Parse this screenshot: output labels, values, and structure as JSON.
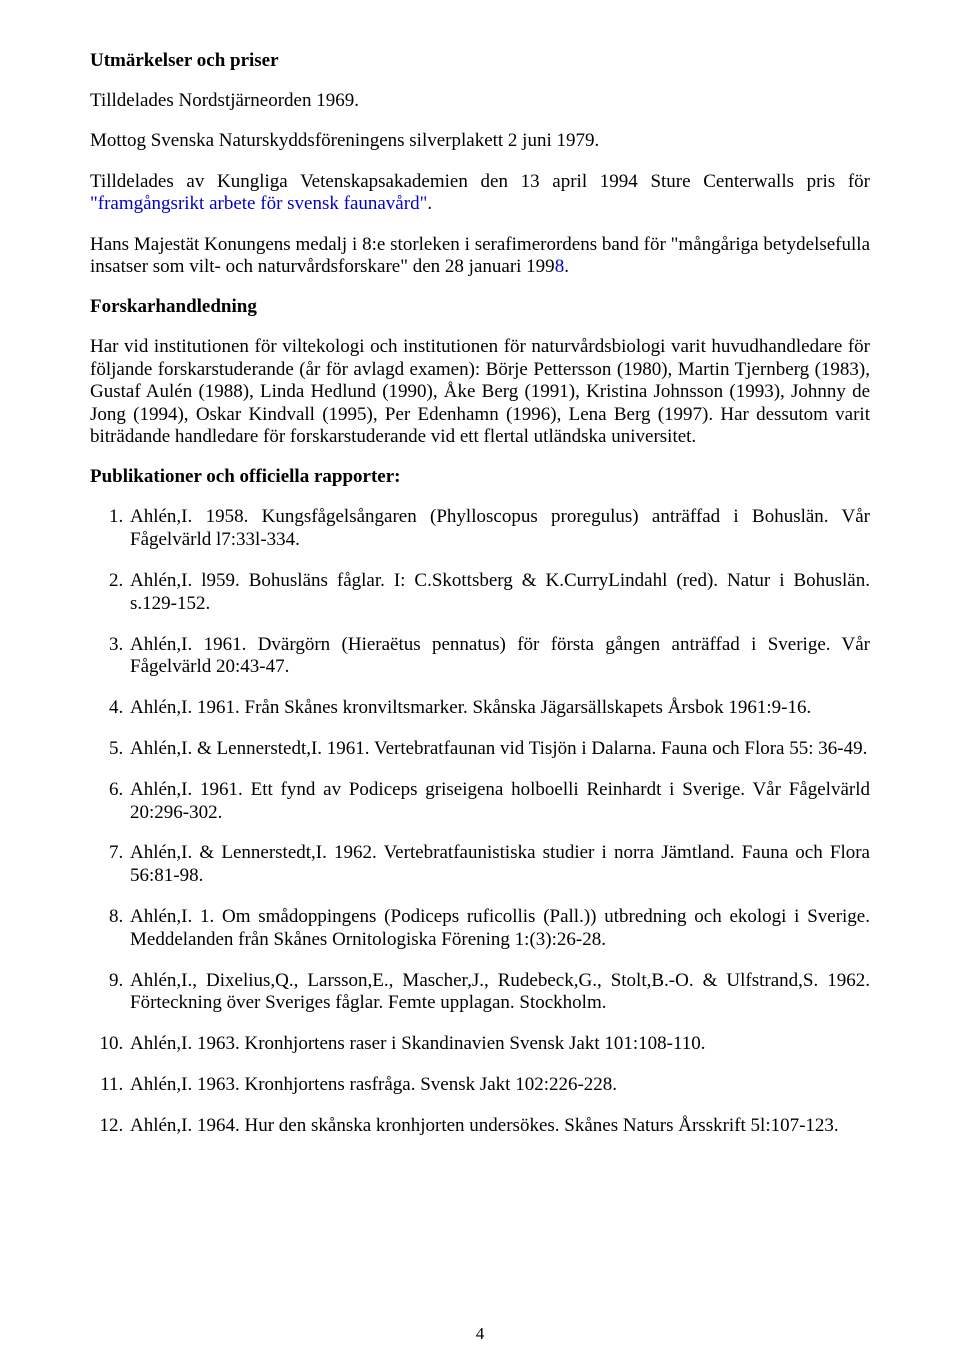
{
  "sections": {
    "awards": {
      "heading": "Utmärkelser och priser",
      "p1": "Tilldelades Nordstjärneorden 1969.",
      "p2": "Mottog Svenska Naturskyddsföreningens silverplakett 2 juni 1979.",
      "p3_pre": "Tilldelades av Kungliga Vetenskapsakademien den 13 april 1994 Sture Centerwalls pris för ",
      "p3_cite": "\"framgångsrikt arbete för svensk faunavård\"",
      "p3_post": ".",
      "p4_pre": "Hans Majestät Konungens medalj i 8:e storleken i serafimerordens band för \"mångåriga betydelsefulla insatser som vilt- och naturvårdsforskare\" den 28 januari 199",
      "p4_cite": "8",
      "p4_post": "."
    },
    "supervision": {
      "heading": "Forskarhandledning",
      "p1": "Har vid institutionen för viltekologi och institutionen för naturvårdsbiologi varit huvudhandledare för följande forskarstuderande (år för avlagd examen): Börje Pettersson (1980), Martin Tjernberg (1983), Gustaf Aulén (1988), Linda Hedlund (1990), Åke Berg (1991), Kristina Johnsson (1993), Johnny de Jong (1994), Oskar Kindvall (1995), Per Edenhamn (1996), Lena Berg (1997). Har dessutom varit biträdande handledare för forskarstuderande vid ett flertal utländska universitet."
    },
    "publications": {
      "heading": "Publikationer och officiella rapporter:",
      "items": [
        "Ahlén,I. 1958. Kungsfågelsångaren (Phylloscopus proregulus) anträffad i Bohuslän. Vår Fågelvärld l7:33l-334.",
        "Ahlén,I. l959. Bohusläns fåglar. I: C.Skottsberg & K.CurryLindahl (red). Natur i Bohuslän. s.129-152.",
        "Ahlén,I. 1961. Dvärgörn (Hieraëtus pennatus) för första gången anträffad i Sverige. Vår Fågelvärld 20:43-47.",
        "Ahlén,I. 1961. Från Skånes kronviltsmarker. Skånska Jägarsällskapets Årsbok 1961:9-16.",
        "Ahlén,I. & Lennerstedt,I. 1961. Vertebratfaunan vid Tisjön i Dalarna. Fauna och Flora 55: 36-49.",
        "Ahlén,I. 1961. Ett fynd av Podiceps griseigena holboelli Reinhardt i Sverige. Vår Fågelvärld 20:296-302.",
        "Ahlén,I. & Lennerstedt,I. 1962. Vertebratfaunistiska studier i norra Jämtland. Fauna och Flora 56:81-98.",
        "Ahlén,I. 1. Om smådoppingens (Podiceps ruficollis (Pall.)) utbredning och ekologi i Sverige. Meddelanden från Skånes Ornitologiska Förening 1:(3):26-28.",
        "Ahlén,I., Dixelius,Q., Larsson,E., Mascher,J., Rudebeck,G., Stolt,B.-O. & Ulfstrand,S. 1962. Förteckning över Sveriges fåglar. Femte upplagan. Stockholm.",
        "Ahlén,I. 1963. Kronhjortens raser i Skandinavien Svensk Jakt 101:108-110.",
        "Ahlén,I. 1963. Kronhjortens rasfråga. Svensk Jakt 102:226-228.",
        "Ahlén,I. 1964. Hur den skånska kronhjorten undersökes. Skånes Naturs Årsskrift 5l:107-123."
      ]
    }
  },
  "pageNumber": "4"
}
